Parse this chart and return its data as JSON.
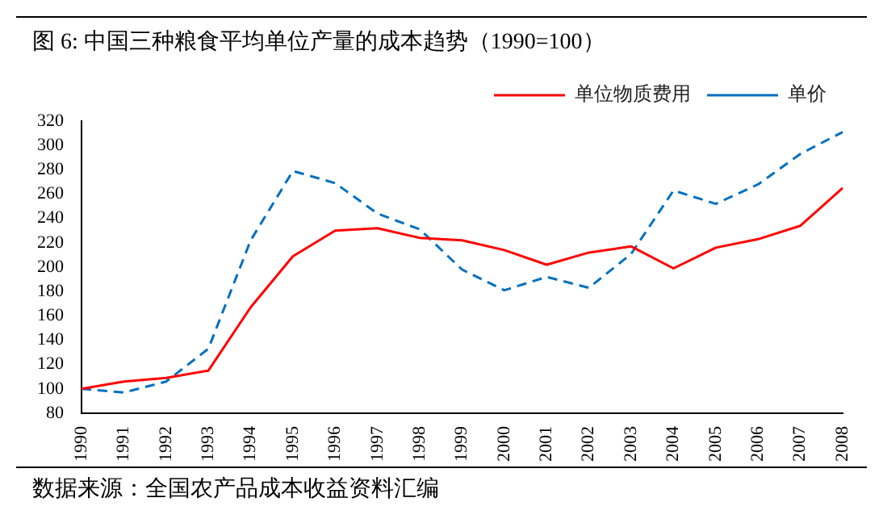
{
  "chart_data": {
    "type": "line",
    "title": "图 6:  中国三种粮食平均单位产量的成本趋势（1990=100）",
    "categories": [
      "1990",
      "1991",
      "1992",
      "1993",
      "1994",
      "1995",
      "1996",
      "1997",
      "1998",
      "1999",
      "2000",
      "2001",
      "2002",
      "2003",
      "2004",
      "2005",
      "2006",
      "2007",
      "2008"
    ],
    "series": [
      {
        "name": "单位物质费用",
        "color": "#ff0000",
        "line_style": "solid",
        "values": [
          100,
          106,
          109,
          115,
          167,
          209,
          230,
          232,
          224,
          222,
          214,
          202,
          212,
          217,
          199,
          216,
          223,
          234,
          265
        ]
      },
      {
        "name": "单价",
        "color": "#0070c0",
        "line_style": "dashed",
        "values": [
          100,
          97,
          106,
          133,
          222,
          279,
          269,
          244,
          231,
          198,
          181,
          192,
          183,
          211,
          263,
          252,
          268,
          293,
          311
        ]
      }
    ],
    "ylim": [
      80,
      320
    ],
    "yticks": [
      80,
      100,
      120,
      140,
      160,
      180,
      200,
      220,
      240,
      260,
      280,
      300,
      320
    ],
    "grid": false,
    "legend": "top",
    "marker": "none",
    "annotations": [
      "数据来源：全国农产品成本收益资料汇编"
    ]
  }
}
